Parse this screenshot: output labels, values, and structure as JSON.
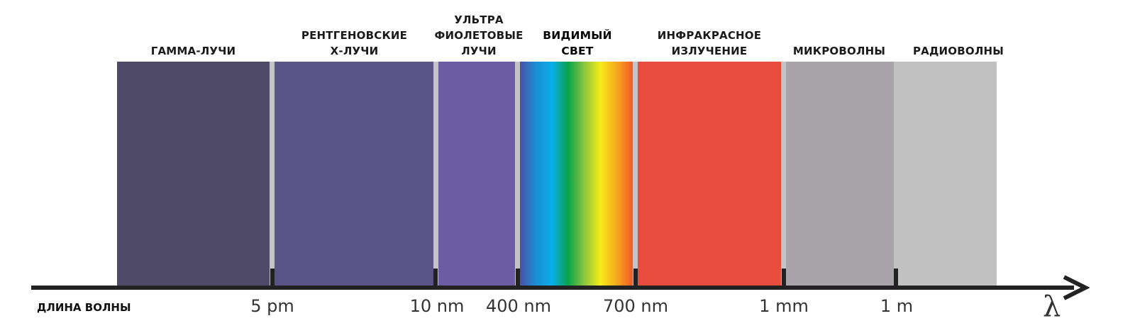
{
  "bands": [
    {
      "id": "gamma",
      "lines": [
        "ГАММА-ЛУЧИ"
      ],
      "color": "#4f4a68"
    },
    {
      "id": "xray",
      "lines": [
        "РЕНТГЕНОВСКИЕ",
        "Х-ЛУЧИ"
      ],
      "color": "#5b5486"
    },
    {
      "id": "uv",
      "lines": [
        "УЛЬТРА",
        "ФИОЛЕТОВЫЕ",
        "ЛУЧИ"
      ],
      "color": "#6c5ca5"
    },
    {
      "id": "visible",
      "lines": [
        "ВИДИМЫЙ",
        "СВЕТ"
      ],
      "gradient": [
        "#4a4fa8",
        "#1a8fd6",
        "#0aaee8",
        "#0aa34a",
        "#8dc63f",
        "#f7ec1a",
        "#f7a81e",
        "#ef5a27"
      ]
    },
    {
      "id": "infrared",
      "lines": [
        "ИНФРАКРАСНОЕ",
        "ИЗЛУЧЕНИЕ"
      ],
      "color": "#e84c3d"
    },
    {
      "id": "microwave",
      "lines": [
        "МИКРОВОЛНЫ"
      ],
      "color": "#a9a4aa"
    },
    {
      "id": "radio",
      "lines": [
        "РАДИОВОЛНЫ"
      ],
      "color": "#c1c1c1"
    }
  ],
  "axis": {
    "title": "ДЛИНА ВОЛНЫ",
    "symbol": "λ",
    "ticks": [
      "5 pm",
      "10 nm",
      "400 nm",
      "700 nm",
      "1 mm",
      "1 m"
    ]
  },
  "colors": {
    "axis": "#222222",
    "separator": "#c4c4c8",
    "text": "#1a1a1a"
  }
}
